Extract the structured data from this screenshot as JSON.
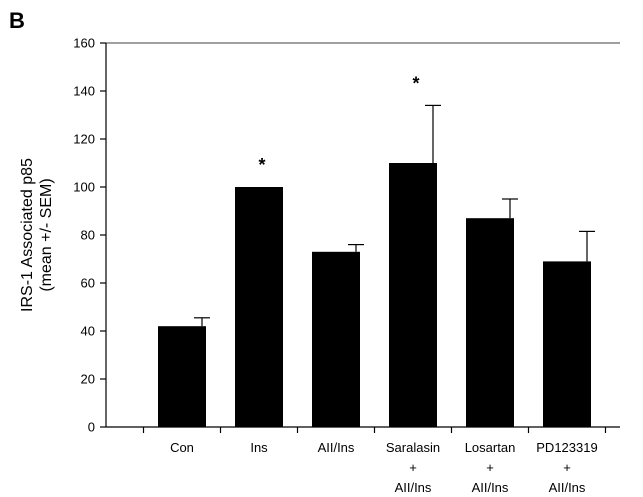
{
  "panel_label": "B",
  "chart_data": {
    "type": "bar",
    "title": "",
    "xlabel": "",
    "ylabel": [
      "IRS-1 Associated p85",
      "(mean +/- SEM)"
    ],
    "ylim": [
      0,
      160
    ],
    "yticks": [
      0,
      20,
      40,
      60,
      80,
      100,
      120,
      140,
      160
    ],
    "categories": [
      [
        "Con"
      ],
      [
        "Ins"
      ],
      [
        "AII/Ins"
      ],
      [
        "Saralasin",
        "+",
        "AII/Ins"
      ],
      [
        "Losartan",
        "+",
        "AII/Ins"
      ],
      [
        "PD123319",
        "+",
        "AII/Ins"
      ]
    ],
    "values": [
      42,
      100,
      73,
      110,
      87,
      69
    ],
    "errors": [
      3.5,
      0,
      3,
      24,
      8,
      12.5
    ],
    "significance": [
      "",
      "*",
      "",
      "*",
      "",
      ""
    ],
    "bar_color": "#000000",
    "grid": false
  }
}
